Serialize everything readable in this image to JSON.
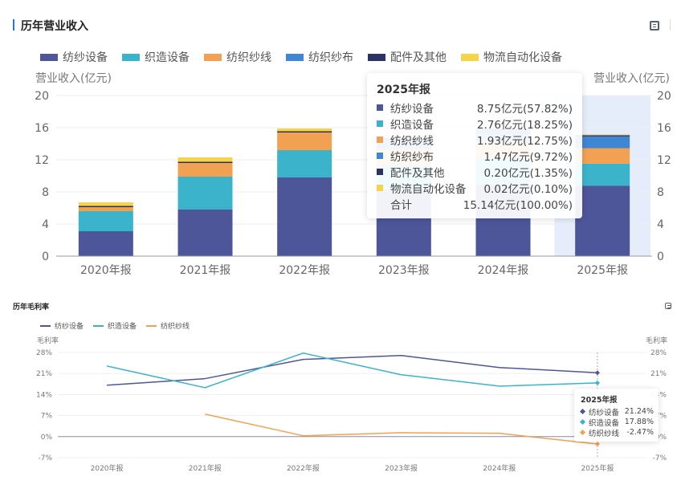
{
  "revenue_section": {
    "title": "历年营业收入",
    "copy_icon": "copy-icon"
  },
  "margin_section": {
    "title": "历年毛利率",
    "copy_icon": "copy-icon"
  },
  "colors": {
    "纺纱设备": "#4c5699",
    "织造设备": "#3bb3cb",
    "纺织纱线": "#f1a151",
    "纺织纱布": "#3f86d4",
    "配件及其他": "#2a3266",
    "物流自动化设备": "#f5d449",
    "highlight": "#e5edfb"
  },
  "chart_data": [
    {
      "type": "bar",
      "stacked": true,
      "title": "历年营业收入",
      "ylabel": "营业收入(亿元)",
      "ylabel_right": "营业收入(亿元)",
      "ylim": [
        0,
        20
      ],
      "yticks": [
        0,
        4,
        8,
        12,
        16,
        20
      ],
      "grid": true,
      "legend_position": "top-left",
      "categories": [
        "2020年报",
        "2021年报",
        "2022年报",
        "2023年报",
        "2024年报",
        "2025年报"
      ],
      "highlighted_category": "2025年报",
      "series": [
        {
          "name": "纺纱设备",
          "values": [
            3.1,
            5.8,
            9.8,
            8.3,
            8.9,
            8.75
          ]
        },
        {
          "name": "织造设备",
          "values": [
            2.5,
            4.1,
            3.4,
            3.0,
            3.3,
            2.76
          ]
        },
        {
          "name": "纺织纱线",
          "values": [
            0.5,
            1.7,
            2.2,
            2.0,
            2.1,
            1.93
          ]
        },
        {
          "name": "纺织纱布",
          "values": [
            0,
            0,
            0,
            1.2,
            1.4,
            1.47
          ]
        },
        {
          "name": "配件及其他",
          "values": [
            0.15,
            0.15,
            0.15,
            0.2,
            0.2,
            0.2
          ]
        },
        {
          "name": "物流自动化设备",
          "values": [
            0.45,
            0.55,
            0.35,
            0.05,
            0.03,
            0.02
          ]
        }
      ],
      "tooltip": {
        "title": "2025年报",
        "rows": [
          {
            "name": "纺纱设备",
            "value": "8.75亿元(57.82%)"
          },
          {
            "name": "织造设备",
            "value": "2.76亿元(18.25%)"
          },
          {
            "name": "纺织纱线",
            "value": "1.93亿元(12.75%)"
          },
          {
            "name": "纺织纱布",
            "value": "1.47亿元(9.72%)"
          },
          {
            "name": "配件及其他",
            "value": "0.20亿元(1.35%)"
          },
          {
            "name": "物流自动化设备",
            "value": "0.02亿元(0.10%)"
          }
        ],
        "total_label": "合计",
        "total_value": "15.14亿元(100.00%)"
      }
    },
    {
      "type": "line",
      "title": "历年毛利率",
      "ylabel": "毛利率",
      "ylabel_right": "毛利率",
      "ylim": [
        -7,
        28
      ],
      "yticks": [
        -7,
        0,
        7,
        14,
        21,
        28
      ],
      "ytick_format": "%",
      "grid": true,
      "legend_position": "top-left",
      "categories": [
        "2020年报",
        "2021年报",
        "2022年报",
        "2023年报",
        "2024年报",
        "2025年报"
      ],
      "series": [
        {
          "name": "纺纱设备",
          "values": [
            17.1,
            19.3,
            25.7,
            27.0,
            23.0,
            21.24
          ]
        },
        {
          "name": "织造设备",
          "values": [
            23.5,
            16.3,
            27.8,
            20.6,
            16.8,
            17.88
          ]
        },
        {
          "name": "纺织纱线",
          "values": [
            null,
            7.5,
            0.3,
            1.3,
            1.1,
            -2.47
          ]
        }
      ],
      "tooltip": {
        "title": "2025年报",
        "rows": [
          {
            "name": "纺纱设备",
            "value": "21.24%"
          },
          {
            "name": "织造设备",
            "value": "17.88%"
          },
          {
            "name": "纺织纱线",
            "value": "-2.47%"
          }
        ]
      }
    }
  ]
}
